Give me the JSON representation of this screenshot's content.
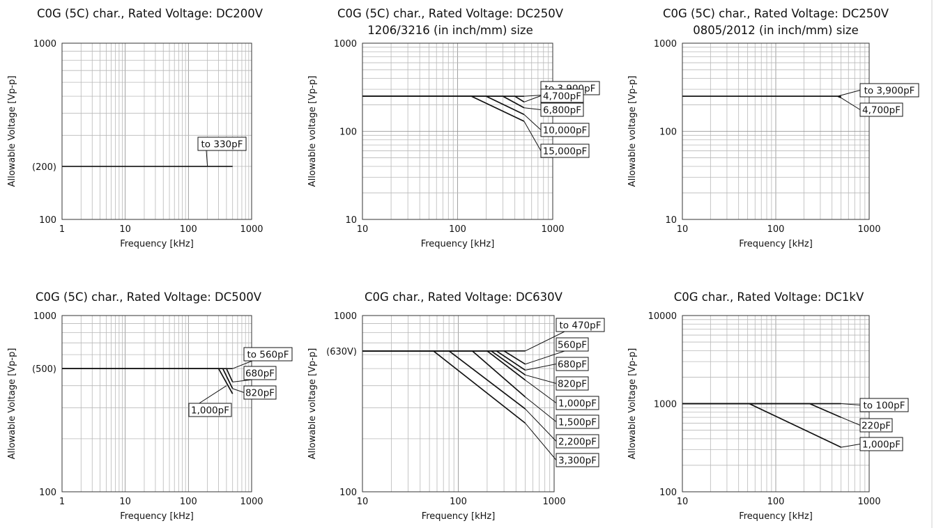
{
  "chart_data": [
    {
      "type": "line",
      "title": "C0G (5C) char., Rated Voltage: DC200V",
      "subtitle": "",
      "xlabel": "Frequency [kHz]",
      "ylabel": "Allowable Voltage [Vp-p]",
      "x_scale": "log",
      "y_scale": "log",
      "xlim": [
        1,
        1000
      ],
      "ylim": [
        100,
        1000
      ],
      "grid": true,
      "x_ticks": [
        "1",
        "10",
        "100",
        "1000"
      ],
      "y_ticks": [
        {
          "value": 100,
          "label": "100"
        },
        {
          "value": 200,
          "label": "(200)"
        },
        {
          "value": 1000,
          "label": "1000"
        }
      ],
      "series": [
        {
          "name": "to 330pF",
          "points": [
            [
              1,
              200
            ],
            [
              500,
              200
            ]
          ],
          "label_at": [
            200,
            200
          ]
        }
      ]
    },
    {
      "type": "line",
      "title": "C0G (5C) char., Rated Voltage: DC250V",
      "subtitle": "1206/3216 (in inch/mm) size",
      "xlabel": "Frequency [kHz]",
      "ylabel": "Allowable voltage [Vp-p]",
      "x_scale": "log",
      "y_scale": "log",
      "xlim": [
        10,
        1000
      ],
      "ylim": [
        10,
        1000
      ],
      "grid": true,
      "x_ticks": [
        "10",
        "100",
        "1000"
      ],
      "y_ticks": [
        {
          "value": 10,
          "label": "10"
        },
        {
          "value": 100,
          "label": "100"
        },
        {
          "value": 1000,
          "label": "1000"
        }
      ],
      "series": [
        {
          "name": "to 3,900pF",
          "points": [
            [
              10,
              250
            ],
            [
              500,
              250
            ]
          ],
          "label_at": [
            500,
            250
          ]
        },
        {
          "name": "4,700pF",
          "points": [
            [
              10,
              250
            ],
            [
              400,
              250
            ],
            [
              500,
              215
            ]
          ],
          "label_at": [
            500,
            215
          ]
        },
        {
          "name": "6,800pF",
          "points": [
            [
              10,
              250
            ],
            [
              300,
              250
            ],
            [
              500,
              185
            ]
          ],
          "label_at": [
            500,
            185
          ]
        },
        {
          "name": "10,000pF",
          "points": [
            [
              10,
              250
            ],
            [
              200,
              250
            ],
            [
              500,
              155
            ]
          ],
          "label_at": [
            500,
            155
          ]
        },
        {
          "name": "15,000pF",
          "points": [
            [
              10,
              250
            ],
            [
              140,
              250
            ],
            [
              500,
              130
            ]
          ],
          "label_at": [
            500,
            130
          ]
        }
      ]
    },
    {
      "type": "line",
      "title": "C0G (5C) char., Rated Voltage: DC250V",
      "subtitle": "0805/2012 (in inch/mm) size",
      "xlabel": "Frequency [kHz]",
      "ylabel": "Allowable voltage [Vp-p]",
      "x_scale": "log",
      "y_scale": "log",
      "xlim": [
        10,
        1000
      ],
      "ylim": [
        10,
        1000
      ],
      "grid": true,
      "x_ticks": [
        "10",
        "100",
        "1000"
      ],
      "y_ticks": [
        {
          "value": 10,
          "label": "10"
        },
        {
          "value": 100,
          "label": "100"
        },
        {
          "value": 1000,
          "label": "1000"
        }
      ],
      "series": [
        {
          "name": "to 3,900pF",
          "points": [
            [
              10,
              250
            ],
            [
              500,
              250
            ]
          ],
          "label_at": [
            460,
            250
          ]
        },
        {
          "name": "4,700pF",
          "points": [
            [
              10,
              250
            ],
            [
              460,
              250
            ],
            [
              500,
              240
            ]
          ],
          "label_at": [
            500,
            240
          ]
        }
      ]
    },
    {
      "type": "line",
      "title": "C0G (5C) char., Rated Voltage: DC500V",
      "subtitle": "",
      "xlabel": "Frequency [kHz]",
      "ylabel": "Allowable Voltage [Vp-p]",
      "x_scale": "log",
      "y_scale": "log",
      "xlim": [
        1,
        1000
      ],
      "ylim": [
        100,
        1000
      ],
      "grid": true,
      "x_ticks": [
        "1",
        "10",
        "100",
        "1000"
      ],
      "y_ticks": [
        {
          "value": 100,
          "label": "100"
        },
        {
          "value": 500,
          "label": "(500)"
        },
        {
          "value": 1000,
          "label": "1000"
        }
      ],
      "series": [
        {
          "name": "to 560pF",
          "points": [
            [
              1,
              500
            ],
            [
              500,
              500
            ]
          ],
          "label_at": [
            500,
            500
          ]
        },
        {
          "name": "680pF",
          "points": [
            [
              1,
              500
            ],
            [
              400,
              500
            ],
            [
              500,
              420
            ]
          ],
          "label_at": [
            500,
            420
          ]
        },
        {
          "name": "820pF",
          "points": [
            [
              1,
              500
            ],
            [
              350,
              500
            ],
            [
              500,
              385
            ]
          ],
          "label_at": [
            500,
            385
          ]
        },
        {
          "name": "1,000pF",
          "points": [
            [
              1,
              500
            ],
            [
              300,
              500
            ],
            [
              500,
              360
            ]
          ],
          "label_at": [
            400,
            400
          ]
        }
      ]
    },
    {
      "type": "line",
      "title": "C0G char., Rated Voltage: DC630V",
      "subtitle": "",
      "xlabel": "Frequency [kHz]",
      "ylabel": "Allowable voltage [Vp-p]",
      "x_scale": "log",
      "y_scale": "log",
      "xlim": [
        10,
        1000
      ],
      "ylim": [
        100,
        1000
      ],
      "grid": true,
      "x_ticks": [
        "10",
        "100",
        "1000"
      ],
      "y_ticks": [
        {
          "value": 100,
          "label": "100"
        },
        {
          "value": 630,
          "label": "(630V)"
        },
        {
          "value": 1000,
          "label": "1000"
        }
      ],
      "series": [
        {
          "name": "to 470pF",
          "points": [
            [
              10,
              630
            ],
            [
              500,
              630
            ]
          ],
          "label_at": [
            500,
            630
          ]
        },
        {
          "name": "560pF",
          "points": [
            [
              10,
              630
            ],
            [
              300,
              630
            ],
            [
              500,
              530
            ]
          ],
          "label_at": [
            500,
            530
          ]
        },
        {
          "name": "680pF",
          "points": [
            [
              10,
              630
            ],
            [
              250,
              630
            ],
            [
              500,
              490
            ]
          ],
          "label_at": [
            500,
            490
          ]
        },
        {
          "name": "820pF",
          "points": [
            [
              10,
              630
            ],
            [
              220,
              630
            ],
            [
              500,
              460
            ]
          ],
          "label_at": [
            500,
            460
          ]
        },
        {
          "name": "1,000pF",
          "points": [
            [
              10,
              630
            ],
            [
              200,
              630
            ],
            [
              500,
              430
            ]
          ],
          "label_at": [
            500,
            430
          ]
        },
        {
          "name": "1,500pF",
          "points": [
            [
              10,
              630
            ],
            [
              140,
              630
            ],
            [
              500,
              345
            ]
          ],
          "label_at": [
            500,
            345
          ]
        },
        {
          "name": "2,200pF",
          "points": [
            [
              10,
              630
            ],
            [
              80,
              630
            ],
            [
              500,
              295
            ]
          ],
          "label_at": [
            500,
            295
          ]
        },
        {
          "name": "3,300pF",
          "points": [
            [
              10,
              630
            ],
            [
              55,
              630
            ],
            [
              500,
              245
            ]
          ],
          "label_at": [
            500,
            245
          ]
        }
      ]
    },
    {
      "type": "line",
      "title": "C0G char., Rated Voltage: DC1kV",
      "subtitle": "",
      "xlabel": "Frequency [kHz]",
      "ylabel": "Allowable Voltage [Vp-p]",
      "x_scale": "log",
      "y_scale": "log",
      "xlim": [
        10,
        10000
      ],
      "ylim": [
        100,
        10000
      ],
      "x_ticks": [
        "10",
        "100",
        "1000"
      ],
      "y_ticks": [
        {
          "value": 100,
          "label": "100"
        },
        {
          "value": 1000,
          "label": "1000"
        },
        {
          "value": 10000,
          "label": "10000"
        }
      ],
      "grid": true,
      "series": [
        {
          "name": "to 100pF",
          "points": [
            [
              10,
              1000
            ],
            [
              500,
              1000
            ]
          ],
          "label_at": [
            500,
            1000
          ]
        },
        {
          "name": "220pF",
          "points": [
            [
              10,
              1000
            ],
            [
              230,
              1000
            ],
            [
              500,
              700
            ]
          ],
          "label_at": [
            500,
            700
          ]
        },
        {
          "name": "1,000pF",
          "points": [
            [
              10,
              1000
            ],
            [
              52,
              1000
            ],
            [
              500,
              320
            ]
          ],
          "label_at": [
            500,
            320
          ]
        }
      ]
    }
  ]
}
